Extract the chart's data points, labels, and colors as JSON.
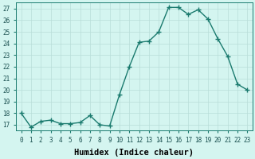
{
  "x": [
    0,
    1,
    2,
    3,
    4,
    5,
    6,
    7,
    8,
    9,
    10,
    11,
    12,
    13,
    14,
    15,
    16,
    17,
    18,
    19,
    20,
    21,
    22,
    23
  ],
  "y": [
    18.0,
    16.8,
    17.3,
    17.4,
    17.1,
    17.1,
    17.2,
    17.8,
    17.0,
    16.9,
    19.6,
    22.0,
    24.1,
    24.2,
    25.0,
    27.1,
    27.1,
    26.5,
    26.9,
    26.1,
    24.4,
    22.9,
    20.5,
    20.0
  ],
  "xlabel": "Humidex (Indice chaleur)",
  "ylim": [
    16.5,
    27.5
  ],
  "xlim": [
    -0.5,
    23.5
  ],
  "yticks": [
    17,
    18,
    19,
    20,
    21,
    22,
    23,
    24,
    25,
    26,
    27
  ],
  "xticks": [
    0,
    1,
    2,
    3,
    4,
    5,
    6,
    7,
    8,
    9,
    10,
    11,
    12,
    13,
    14,
    15,
    16,
    17,
    18,
    19,
    20,
    21,
    22,
    23
  ],
  "line_color": "#1a7a6e",
  "marker": "+",
  "marker_size": 4,
  "bg_color": "#d4f5f0",
  "grid_color": "#b8ddd8",
  "tick_fontsize": 5.5,
  "xlabel_fontsize": 7.5,
  "line_width": 1.0,
  "fig_width": 3.2,
  "fig_height": 2.0,
  "dpi": 100
}
